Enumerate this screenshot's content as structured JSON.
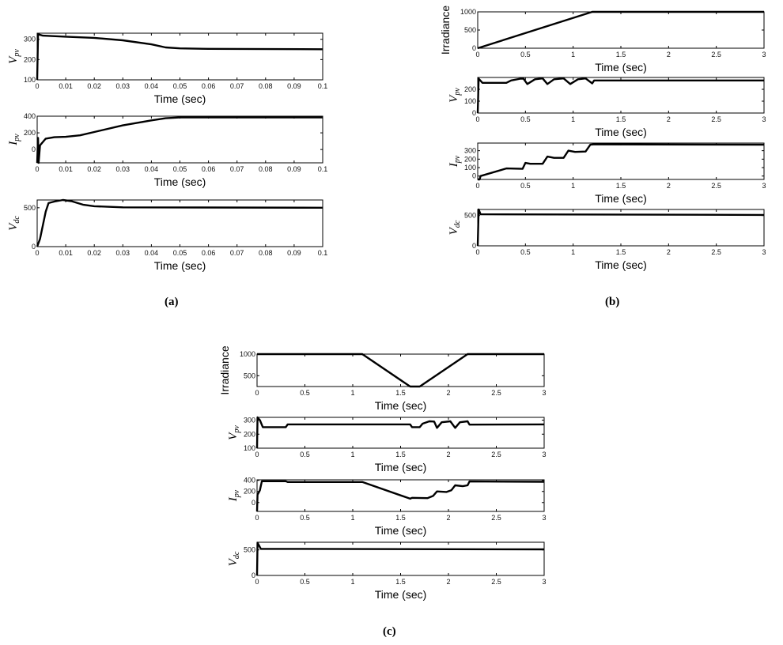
{
  "panel_labels": [
    "(a)",
    "(b)",
    "(c)"
  ],
  "chart_data": [
    {
      "panel": "(a)",
      "type": "line",
      "ylabel": "V",
      "ylabel_sub": "pv",
      "xlabel": "Time (sec)",
      "xlim": [
        0,
        0.1
      ],
      "ylim": [
        100,
        330
      ],
      "xticks": [
        0,
        0.01,
        0.02,
        0.03,
        0.04,
        0.05,
        0.06,
        0.07,
        0.08,
        0.09,
        0.1
      ],
      "xtick_labels": [
        "0",
        "0.01",
        "0.02",
        "0.03",
        "0.04",
        "0.05",
        "0.06",
        "0.07",
        "0.08",
        "0.09",
        "0.1"
      ],
      "yticks": [
        100,
        200,
        300
      ],
      "ytick_labels": [
        "100",
        "200",
        "300"
      ],
      "x": [
        0,
        0.0003,
        0.002,
        0.01,
        0.02,
        0.03,
        0.04,
        0.045,
        0.05,
        0.06,
        0.1
      ],
      "y": [
        100,
        325,
        318,
        313,
        307,
        295,
        275,
        260,
        255,
        253,
        251
      ]
    },
    {
      "panel": "(a)",
      "type": "line",
      "ylabel": "I",
      "ylabel_sub": "pv",
      "xlabel": "Time (sec)",
      "xlim": [
        0,
        0.1
      ],
      "ylim": [
        -160,
        400
      ],
      "xticks": [
        0,
        0.01,
        0.02,
        0.03,
        0.04,
        0.05,
        0.06,
        0.07,
        0.08,
        0.09,
        0.1
      ],
      "xtick_labels": [
        "0",
        "0.01",
        "0.02",
        "0.03",
        "0.04",
        "0.05",
        "0.06",
        "0.07",
        "0.08",
        "0.09",
        "0.1"
      ],
      "yticks": [
        0,
        200,
        400
      ],
      "ytick_labels": [
        "0",
        "200",
        "400"
      ],
      "x": [
        0,
        0.0003,
        0.0005,
        0.001,
        0.003,
        0.006,
        0.01,
        0.015,
        0.02,
        0.03,
        0.04,
        0.045,
        0.05,
        0.1
      ],
      "y": [
        -160,
        140,
        -160,
        50,
        130,
        148,
        152,
        170,
        210,
        290,
        350,
        375,
        385,
        385
      ]
    },
    {
      "panel": "(a)",
      "type": "line",
      "ylabel": "V",
      "ylabel_sub": "dc",
      "xlabel": "Time (sec)",
      "xlim": [
        0,
        0.1
      ],
      "ylim": [
        0,
        600
      ],
      "xticks": [
        0,
        0.01,
        0.02,
        0.03,
        0.04,
        0.05,
        0.06,
        0.07,
        0.08,
        0.09,
        0.1
      ],
      "xtick_labels": [
        "0",
        "0.01",
        "0.02",
        "0.03",
        "0.04",
        "0.05",
        "0.06",
        "0.07",
        "0.08",
        "0.09",
        "0.1"
      ],
      "yticks": [
        0,
        500
      ],
      "ytick_labels": [
        "0",
        "500"
      ],
      "x": [
        0,
        0.001,
        0.003,
        0.004,
        0.006,
        0.009,
        0.012,
        0.016,
        0.02,
        0.03,
        0.1
      ],
      "y": [
        0,
        100,
        450,
        560,
        580,
        600,
        585,
        540,
        520,
        505,
        500
      ]
    },
    {
      "panel": "(b)",
      "type": "line",
      "ylabel": "Irradiance",
      "ylabel_sub": "",
      "xlabel": "Time (sec)",
      "xlim": [
        0,
        3
      ],
      "ylim": [
        0,
        1000
      ],
      "xticks": [
        0,
        0.5,
        1,
        1.5,
        2,
        2.5,
        3
      ],
      "xtick_labels": [
        "0",
        "0.5",
        "1",
        "1.5",
        "2",
        "2.5",
        "3"
      ],
      "yticks": [
        0,
        500,
        1000
      ],
      "ytick_labels": [
        "0",
        "500",
        "1000"
      ],
      "x": [
        0,
        1.2,
        3
      ],
      "y": [
        0,
        1000,
        1000
      ]
    },
    {
      "panel": "(b)",
      "type": "line",
      "ylabel": "V",
      "ylabel_sub": "pv",
      "xlabel": "Time (sec)",
      "xlim": [
        0,
        3
      ],
      "ylim": [
        0,
        300
      ],
      "xticks": [
        0,
        0.5,
        1,
        1.5,
        2,
        2.5,
        3
      ],
      "xtick_labels": [
        "0",
        "0.5",
        "1",
        "1.5",
        "2",
        "2.5",
        "3"
      ],
      "yticks": [
        0,
        100,
        200
      ],
      "ytick_labels": [
        "0",
        "100",
        "200"
      ],
      "x": [
        0,
        0.01,
        0.05,
        0.3,
        0.35,
        0.45,
        0.48,
        0.52,
        0.6,
        0.68,
        0.73,
        0.8,
        0.9,
        0.97,
        1.05,
        1.13,
        1.2,
        1.22,
        3
      ],
      "y": [
        0,
        290,
        255,
        255,
        275,
        290,
        290,
        245,
        285,
        292,
        245,
        285,
        292,
        245,
        285,
        292,
        250,
        275,
        275
      ]
    },
    {
      "panel": "(b)",
      "type": "line",
      "ylabel": "I",
      "ylabel_sub": "pv",
      "xlabel": "Time (sec)",
      "xlim": [
        0,
        3
      ],
      "ylim": [
        -40,
        390
      ],
      "xticks": [
        0,
        0.5,
        1,
        1.5,
        2,
        2.5,
        3
      ],
      "xtick_labels": [
        "0",
        "0.5",
        "1",
        "1.5",
        "2",
        "2.5",
        "3"
      ],
      "yticks": [
        0,
        100,
        200,
        300
      ],
      "ytick_labels": [
        "0",
        "100",
        "200",
        "300"
      ],
      "x": [
        0,
        0.02,
        0.03,
        0.3,
        0.47,
        0.5,
        0.55,
        0.68,
        0.73,
        0.8,
        0.9,
        0.95,
        1.02,
        1.13,
        1.18,
        1.22,
        3
      ],
      "y": [
        -40,
        -40,
        0,
        90,
        85,
        155,
        145,
        145,
        230,
        215,
        215,
        300,
        285,
        290,
        370,
        375,
        370
      ]
    },
    {
      "panel": "(b)",
      "type": "line",
      "ylabel": "V",
      "ylabel_sub": "dc",
      "xlabel": "Time (sec)",
      "xlim": [
        0,
        3
      ],
      "ylim": [
        0,
        600
      ],
      "xticks": [
        0,
        0.5,
        1,
        1.5,
        2,
        2.5,
        3
      ],
      "xtick_labels": [
        "0",
        "0.5",
        "1",
        "1.5",
        "2",
        "2.5",
        "3"
      ],
      "yticks": [
        0,
        500
      ],
      "ytick_labels": [
        "0",
        "500"
      ],
      "x": [
        0,
        0.01,
        0.03,
        3
      ],
      "y": [
        0,
        600,
        520,
        510
      ]
    },
    {
      "panel": "(c)",
      "type": "line",
      "ylabel": "Irradiance",
      "ylabel_sub": "",
      "xlabel": "Time (sec)",
      "xlim": [
        0,
        3
      ],
      "ylim": [
        250,
        1000
      ],
      "xticks": [
        0,
        0.5,
        1,
        1.5,
        2,
        2.5,
        3
      ],
      "xtick_labels": [
        "0",
        "0.5",
        "1",
        "1.5",
        "2",
        "2.5",
        "3"
      ],
      "yticks": [
        500,
        1000
      ],
      "ytick_labels": [
        "500",
        "1000"
      ],
      "x": [
        0,
        1.1,
        1.6,
        1.7,
        2.2,
        3
      ],
      "y": [
        1000,
        1000,
        250,
        250,
        1000,
        1000
      ]
    },
    {
      "panel": "(c)",
      "type": "line",
      "ylabel": "V",
      "ylabel_sub": "pv",
      "xlabel": "Time (sec)",
      "xlim": [
        0,
        3
      ],
      "ylim": [
        100,
        320
      ],
      "xticks": [
        0,
        0.5,
        1,
        1.5,
        2,
        2.5,
        3
      ],
      "xtick_labels": [
        "0",
        "0.5",
        "1",
        "1.5",
        "2",
        "2.5",
        "3"
      ],
      "yticks": [
        100,
        200,
        300
      ],
      "ytick_labels": [
        "100",
        "200",
        "300"
      ],
      "x": [
        0,
        0.005,
        0.03,
        0.06,
        0.3,
        0.32,
        1.6,
        1.62,
        1.7,
        1.73,
        1.8,
        1.85,
        1.88,
        1.93,
        2.02,
        2.07,
        2.12,
        2.2,
        2.22,
        3
      ],
      "y": [
        100,
        320,
        300,
        250,
        250,
        270,
        270,
        250,
        250,
        275,
        292,
        290,
        245,
        285,
        292,
        245,
        285,
        292,
        268,
        270
      ]
    },
    {
      "panel": "(c)",
      "type": "line",
      "ylabel": "I",
      "ylabel_sub": "pv",
      "xlabel": "Time (sec)",
      "xlim": [
        0,
        3
      ],
      "ylim": [
        -160,
        410
      ],
      "xticks": [
        0,
        0.5,
        1,
        1.5,
        2,
        2.5,
        3
      ],
      "xtick_labels": [
        "0",
        "0.5",
        "1",
        "1.5",
        "2",
        "2.5",
        "3"
      ],
      "yticks": [
        0,
        200,
        400
      ],
      "ytick_labels": [
        "0",
        "200",
        "400"
      ],
      "x": [
        0,
        0.005,
        0.03,
        0.05,
        0.3,
        0.32,
        1.1,
        1.6,
        1.62,
        1.78,
        1.84,
        1.88,
        1.98,
        2.03,
        2.07,
        2.15,
        2.2,
        2.22,
        3
      ],
      "y": [
        -160,
        140,
        220,
        385,
        385,
        370,
        370,
        70,
        85,
        80,
        120,
        200,
        190,
        220,
        310,
        295,
        310,
        380,
        375
      ]
    },
    {
      "panel": "(c)",
      "type": "line",
      "ylabel": "V",
      "ylabel_sub": "dc",
      "xlabel": "Time (sec)",
      "xlim": [
        0,
        3
      ],
      "ylim": [
        0,
        650
      ],
      "xticks": [
        0,
        0.5,
        1,
        1.5,
        2,
        2.5,
        3
      ],
      "xtick_labels": [
        "0",
        "0.5",
        "1",
        "1.5",
        "2",
        "2.5",
        "3"
      ],
      "yticks": [
        0,
        500
      ],
      "ytick_labels": [
        "0",
        "500"
      ],
      "x": [
        0,
        0.005,
        0.04,
        3
      ],
      "y": [
        0,
        640,
        520,
        510
      ]
    }
  ]
}
